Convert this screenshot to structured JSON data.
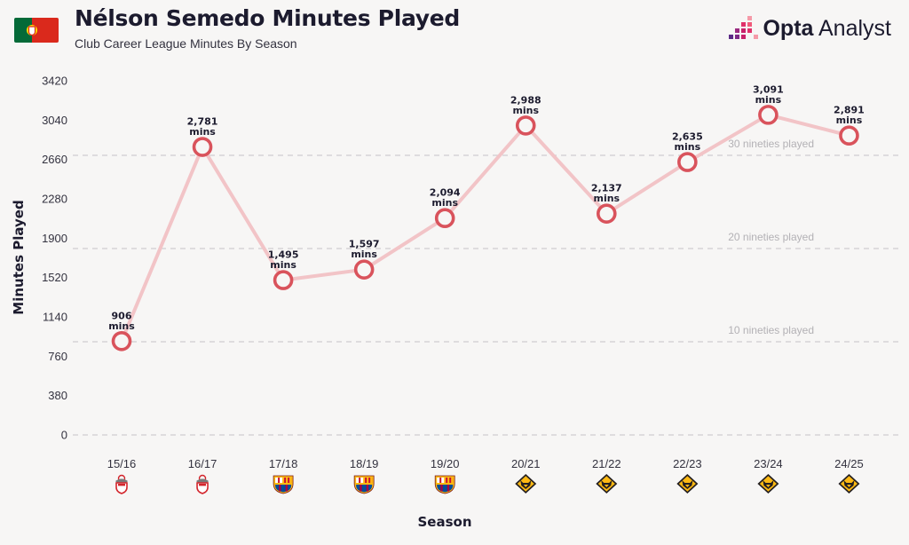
{
  "header": {
    "title": "Nélson Semedo Minutes Played",
    "subtitle": "Club Career League Minutes By Season",
    "flag_icon": "portugal-flag-icon",
    "brand": {
      "bold": "Opta",
      "regular": " Analyst",
      "icon": "opta-analyst-logo-icon"
    }
  },
  "colors": {
    "line": "#f2c4c7",
    "marker_stroke": "#d9535c",
    "marker_fill": "#f7f6f5",
    "grid": "#cfcdd0",
    "text": "#1c1b2e",
    "flag_green": "#046a38",
    "flag_red": "#da291c",
    "benfica_red": "#d3252c",
    "barca_blue": "#004d98",
    "barca_red": "#a50044",
    "wolves_gold": "#fdb913",
    "brand_pink": "#c8226b"
  },
  "chart_data": {
    "type": "line",
    "title": "Nélson Semedo Minutes Played",
    "subtitle": "Club Career League Minutes By Season",
    "xlabel": "Season",
    "ylabel": "Minutes Played",
    "ylim": [
      0,
      3420
    ],
    "yticks": [
      0,
      380,
      760,
      1140,
      1520,
      1900,
      2280,
      2660,
      3040,
      3420
    ],
    "yticks_display": [
      "0",
      "380",
      "760",
      "1140",
      "1520",
      "1900",
      "2280",
      "2660",
      "3040",
      "3420"
    ],
    "categories": [
      "15/16",
      "16/17",
      "17/18",
      "18/19",
      "19/20",
      "20/21",
      "21/22",
      "22/23",
      "23/24",
      "24/25"
    ],
    "series": [
      {
        "values": [
          906,
          2781,
          1495,
          1597,
          2094,
          2988,
          2137,
          2635,
          3091,
          2891
        ],
        "data_labels": [
          "906",
          "2,781",
          "1,495",
          "1,597",
          "2,094",
          "2,988",
          "2,137",
          "2,635",
          "3,091",
          "2,891"
        ],
        "unit_label": "mins"
      }
    ],
    "club_icons": [
      "benfica-crest-icon",
      "benfica-crest-icon",
      "barcelona-crest-icon",
      "barcelona-crest-icon",
      "barcelona-crest-icon",
      "wolves-crest-icon",
      "wolves-crest-icon",
      "wolves-crest-icon",
      "wolves-crest-icon",
      "wolves-crest-icon"
    ],
    "reference_lines": [
      {
        "value": 900,
        "label": "10 nineties played"
      },
      {
        "value": 1800,
        "label": "20 nineties played"
      },
      {
        "value": 2700,
        "label": "30 nineties played"
      }
    ],
    "grid": true,
    "legend": "none"
  }
}
